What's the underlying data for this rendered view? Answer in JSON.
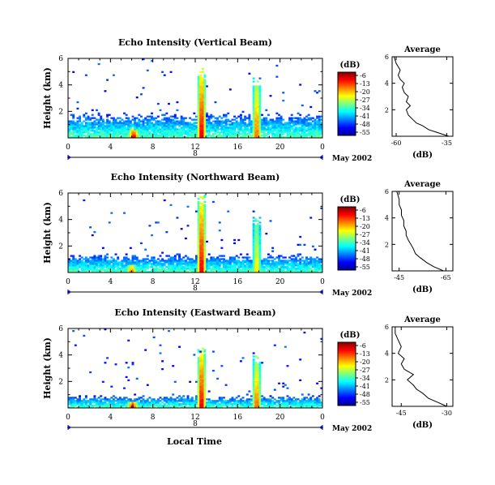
{
  "figure": {
    "xlabel": "Local Time",
    "date_label": "May 2002",
    "day_marker": "8",
    "ylabel": "Height (km)",
    "colorbar_unit": "(dB)",
    "colorbar_ticks": [
      "-6",
      "-13",
      "-20",
      "-27",
      "-34",
      "-41",
      "-48",
      "-55"
    ],
    "average_title": "Average",
    "average_xlabel": "(dB)"
  },
  "panels": [
    {
      "title": "Echo Intensity (Vertical Beam)",
      "avg_ticks": [
        "-60",
        "-35"
      ]
    },
    {
      "title": "Echo Intensity (Northward Beam)",
      "avg_ticks": [
        "-45",
        "-65"
      ]
    },
    {
      "title": "Echo Intensity (Eastward Beam)",
      "avg_ticks": [
        "-45",
        "-30"
      ]
    }
  ],
  "chart_data": [
    {
      "type": "heatmap",
      "title": "Echo Intensity (Vertical Beam)",
      "xlabel": "",
      "ylabel": "Height (km)",
      "xlim": [
        0,
        24
      ],
      "ylim": [
        0,
        6
      ],
      "x_ticks": [
        "0",
        "4",
        "8",
        "12",
        "16",
        "20",
        "0"
      ],
      "y_ticks": [
        "2",
        "4",
        "6"
      ],
      "colorbar": {
        "unit": "dB",
        "range": [
          -55,
          -6
        ],
        "ticks": [
          -6,
          -13,
          -20,
          -27,
          -34,
          -41,
          -48,
          -55
        ]
      },
      "features": [
        {
          "hour": 12.6,
          "top_km": 5.0,
          "peak_dB": -6
        },
        {
          "hour": 17.8,
          "top_km": 4.4,
          "peak_dB": -13
        },
        {
          "hour": 6.2,
          "top_km": 0.7,
          "peak_dB": -6
        }
      ],
      "layer_top_km": 1.6,
      "average_profile": {
        "title": "Average",
        "xlabel": "(dB)",
        "x_ticks": [
          -60,
          -35
        ],
        "y_ticks": [
          2,
          4,
          6
        ],
        "ylim": [
          0,
          6
        ],
        "xlim": [
          -62,
          -32
        ],
        "height_km": [
          0.0,
          0.3,
          0.5,
          0.8,
          1.0,
          1.3,
          1.6,
          2.0,
          2.3,
          2.6,
          3.0,
          3.3,
          3.7,
          4.0,
          4.3,
          4.6,
          5.0,
          5.5,
          6.0
        ],
        "dB": [
          -34,
          -40,
          -44,
          -47,
          -50,
          -52,
          -54,
          -55,
          -53,
          -55,
          -54,
          -56,
          -57,
          -56,
          -58,
          -59,
          -58,
          -60,
          -61
        ]
      }
    },
    {
      "type": "heatmap",
      "title": "Echo Intensity (Northward Beam)",
      "xlabel": "",
      "ylabel": "Height (km)",
      "xlim": [
        0,
        24
      ],
      "ylim": [
        0,
        6
      ],
      "x_ticks": [
        "0",
        "4",
        "8",
        "12",
        "16",
        "20",
        "0"
      ],
      "y_ticks": [
        "2",
        "4",
        "6"
      ],
      "colorbar": {
        "unit": "dB",
        "range": [
          -55,
          -6
        ],
        "ticks": [
          -6,
          -13,
          -20,
          -27,
          -34,
          -41,
          -48,
          -55
        ]
      },
      "features": [
        {
          "hour": 12.6,
          "top_km": 5.8,
          "peak_dB": -6
        },
        {
          "hour": 17.8,
          "top_km": 4.2,
          "peak_dB": -20
        },
        {
          "hour": 6.0,
          "top_km": 0.6,
          "peak_dB": -13
        }
      ],
      "layer_top_km": 1.2,
      "average_profile": {
        "title": "Average",
        "xlabel": "(dB)",
        "x_ticks": [
          -45,
          -65
        ],
        "y_ticks": [
          2,
          4,
          6
        ],
        "ylim": [
          0,
          6
        ],
        "xlim": [
          -42,
          -68
        ],
        "height_km": [
          0.0,
          0.3,
          0.6,
          1.0,
          1.3,
          1.7,
          2.0,
          2.3,
          2.7,
          3.0,
          3.4,
          3.8,
          4.2,
          4.6,
          5.0,
          5.4,
          6.0
        ],
        "dB": [
          -64,
          -60,
          -57,
          -54,
          -52,
          -51,
          -50,
          -49,
          -48,
          -48,
          -47,
          -47,
          -46,
          -46,
          -45,
          -45,
          -44
        ]
      }
    },
    {
      "type": "heatmap",
      "title": "Echo Intensity (Eastward Beam)",
      "xlabel": "Local Time",
      "ylabel": "Height (km)",
      "xlim": [
        0,
        24
      ],
      "ylim": [
        0,
        6
      ],
      "x_ticks": [
        "0",
        "4",
        "8",
        "12",
        "16",
        "20",
        "0"
      ],
      "y_ticks": [
        "2",
        "4",
        "6"
      ],
      "colorbar": {
        "unit": "dB",
        "range": [
          -55,
          -6
        ],
        "ticks": [
          -6,
          -13,
          -20,
          -27,
          -34,
          -41,
          -48,
          -55
        ]
      },
      "features": [
        {
          "hour": 12.6,
          "top_km": 4.5,
          "peak_dB": -6
        },
        {
          "hour": 17.8,
          "top_km": 3.8,
          "peak_dB": -13
        },
        {
          "hour": 6.1,
          "top_km": 0.5,
          "peak_dB": -6
        }
      ],
      "layer_top_km": 0.8,
      "average_profile": {
        "title": "Average",
        "xlabel": "(dB)",
        "x_ticks": [
          -45,
          -30
        ],
        "y_ticks": [
          2,
          4,
          6
        ],
        "ylim": [
          0,
          6
        ],
        "xlim": [
          -48,
          -28
        ],
        "height_km": [
          0.0,
          0.3,
          0.6,
          1.0,
          1.3,
          1.6,
          2.0,
          2.4,
          2.8,
          3.2,
          3.6,
          4.0,
          4.5,
          5.0,
          5.5,
          6.0
        ],
        "dB": [
          -30,
          -33,
          -36,
          -38,
          -40,
          -41,
          -43,
          -41,
          -44,
          -45,
          -44,
          -46,
          -45,
          -46,
          -47,
          -47
        ]
      }
    }
  ]
}
